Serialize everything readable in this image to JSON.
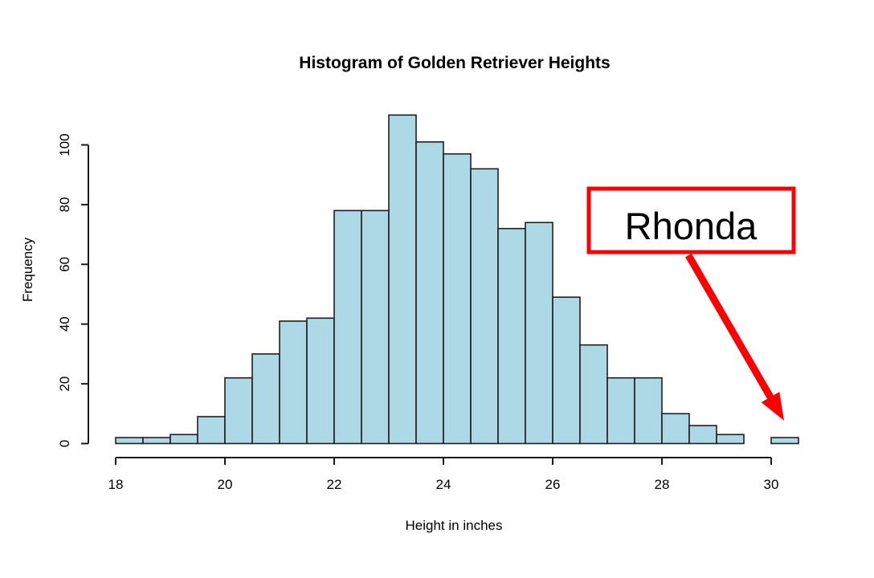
{
  "chart_data": {
    "type": "bar",
    "subtype": "histogram",
    "title": "Histogram of Golden Retriever Heights",
    "xlabel": "Height in inches",
    "ylabel": "Frequency",
    "bin_start": 18,
    "bin_width": 0.5,
    "counts": [
      2,
      2,
      3,
      9,
      22,
      30,
      41,
      42,
      78,
      78,
      110,
      101,
      97,
      92,
      72,
      74,
      49,
      33,
      22,
      22,
      10,
      6,
      3,
      0,
      2
    ],
    "x_ticks": [
      18,
      20,
      22,
      24,
      26,
      28,
      30
    ],
    "y_ticks": [
      0,
      20,
      40,
      60,
      80,
      100
    ],
    "xlim": [
      18,
      30.5
    ],
    "ylim": [
      0,
      110
    ],
    "grid": false,
    "legend": null,
    "annotation": {
      "label": "Rhonda",
      "points_to_bin_start": 30,
      "box_color": "#ff0000",
      "arrow_color": "#ff0000",
      "text_color": "#000000",
      "box_fill": "#ffffff"
    },
    "colors": {
      "bar_fill": "#add8e6",
      "bar_border": "#1f1f1f",
      "axis": "#1a1a1a",
      "text": "#000000",
      "background": "#ffffff"
    }
  }
}
